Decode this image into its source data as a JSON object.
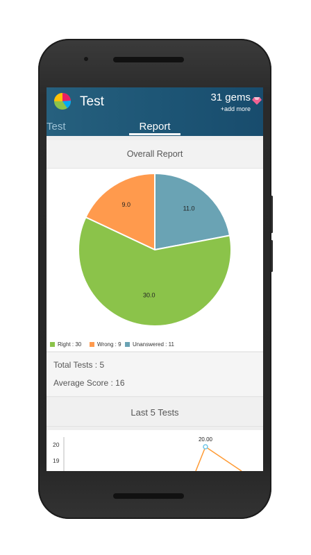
{
  "app": {
    "title": "Test",
    "gems_label": "31 gems",
    "add_more_label": "+add more",
    "gem_icon": "pink-diamond-icon",
    "logo_icon": "pie-chart-logo-icon"
  },
  "tabs": [
    {
      "label": "Test",
      "active": false
    },
    {
      "label": "Report",
      "active": true
    }
  ],
  "overall_report": {
    "heading": "Overall Report",
    "stats": {
      "total_tests": "Total Tests : 5",
      "average_score": "Average Score : 16"
    }
  },
  "last_tests": {
    "heading": "Last 5 Tests"
  },
  "colors": {
    "appbar": "#1d5575",
    "right": "#8bc34a",
    "wrong": "#ff9a4d",
    "unanswered": "#6aa3b4",
    "line": "#ff9a33"
  },
  "chart_data": [
    {
      "type": "pie",
      "slices": [
        {
          "label": "Right",
          "value": 30,
          "color": "#8bc34a",
          "value_text": "30.0",
          "legend_text": "Right : 30"
        },
        {
          "label": "Wrong",
          "value": 9,
          "color": "#ff9a4d",
          "value_text": "9.0",
          "legend_text": "Wrong : 9"
        },
        {
          "label": "Unanswered",
          "value": 11,
          "color": "#6aa3b4",
          "value_text": "11.0",
          "legend_text": "Unanswered : 11"
        }
      ],
      "legend_position": "bottom-left"
    },
    {
      "type": "line",
      "y_tick_labels": [
        "20",
        "19"
      ],
      "visible_point": {
        "y": 20.0,
        "label": "20.00"
      },
      "line_color": "#ff9a33"
    }
  ]
}
